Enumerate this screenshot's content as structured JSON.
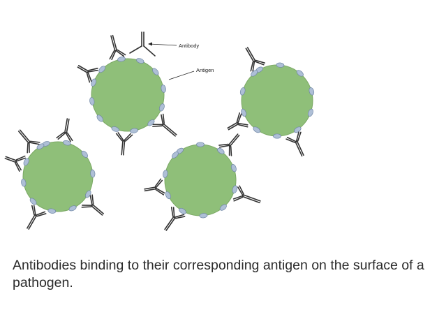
{
  "labels": {
    "antibody": "Antibody",
    "antigen": "Antigen"
  },
  "caption": "Antibodies binding to their corresponding antigen on the surface of a pathogen.",
  "colors": {
    "pathogen": "#8fbf79",
    "pathogen_stroke": "#7aa864",
    "antigen": "#aebfd6",
    "antigen_stroke": "#6f86a6",
    "antibody": "#333333"
  },
  "counts": {
    "pathogens": 4
  }
}
